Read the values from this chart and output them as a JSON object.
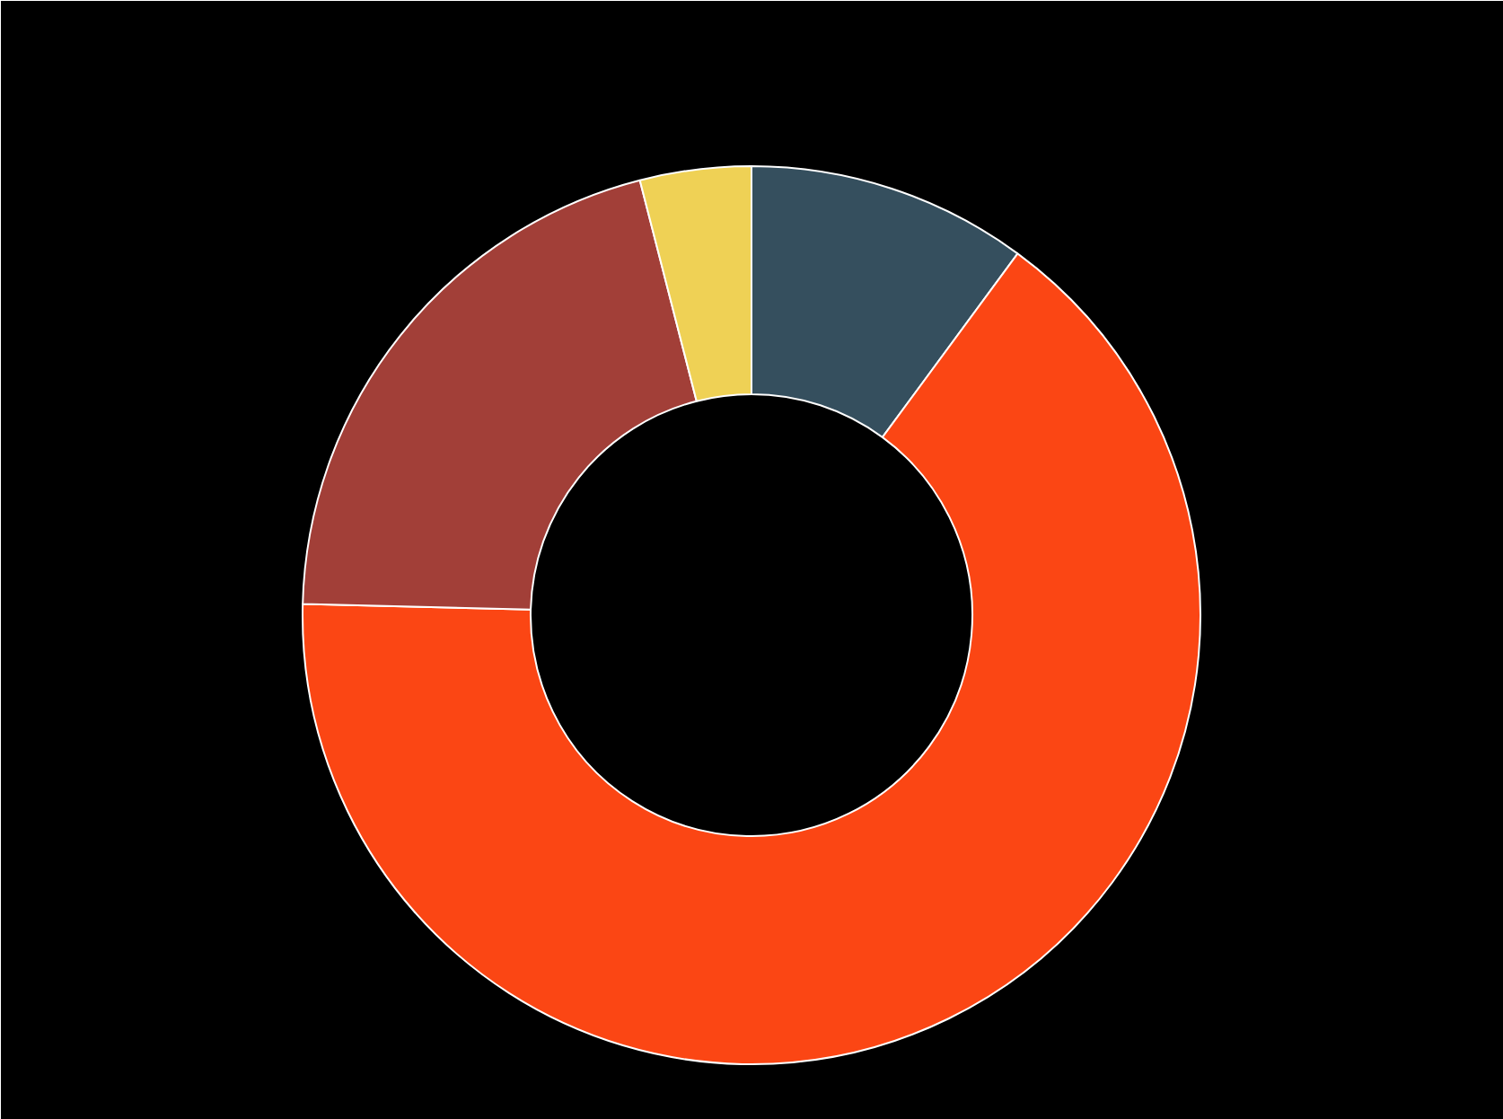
{
  "chart_data": {
    "type": "donut",
    "categories": [
      null,
      null,
      null,
      null
    ],
    "values": [
      10.1,
      65.3,
      20.6,
      4.0
    ],
    "colors": [
      "#354f5e",
      "#fb4614",
      "#a23f38",
      "#efd155"
    ]
  }
}
